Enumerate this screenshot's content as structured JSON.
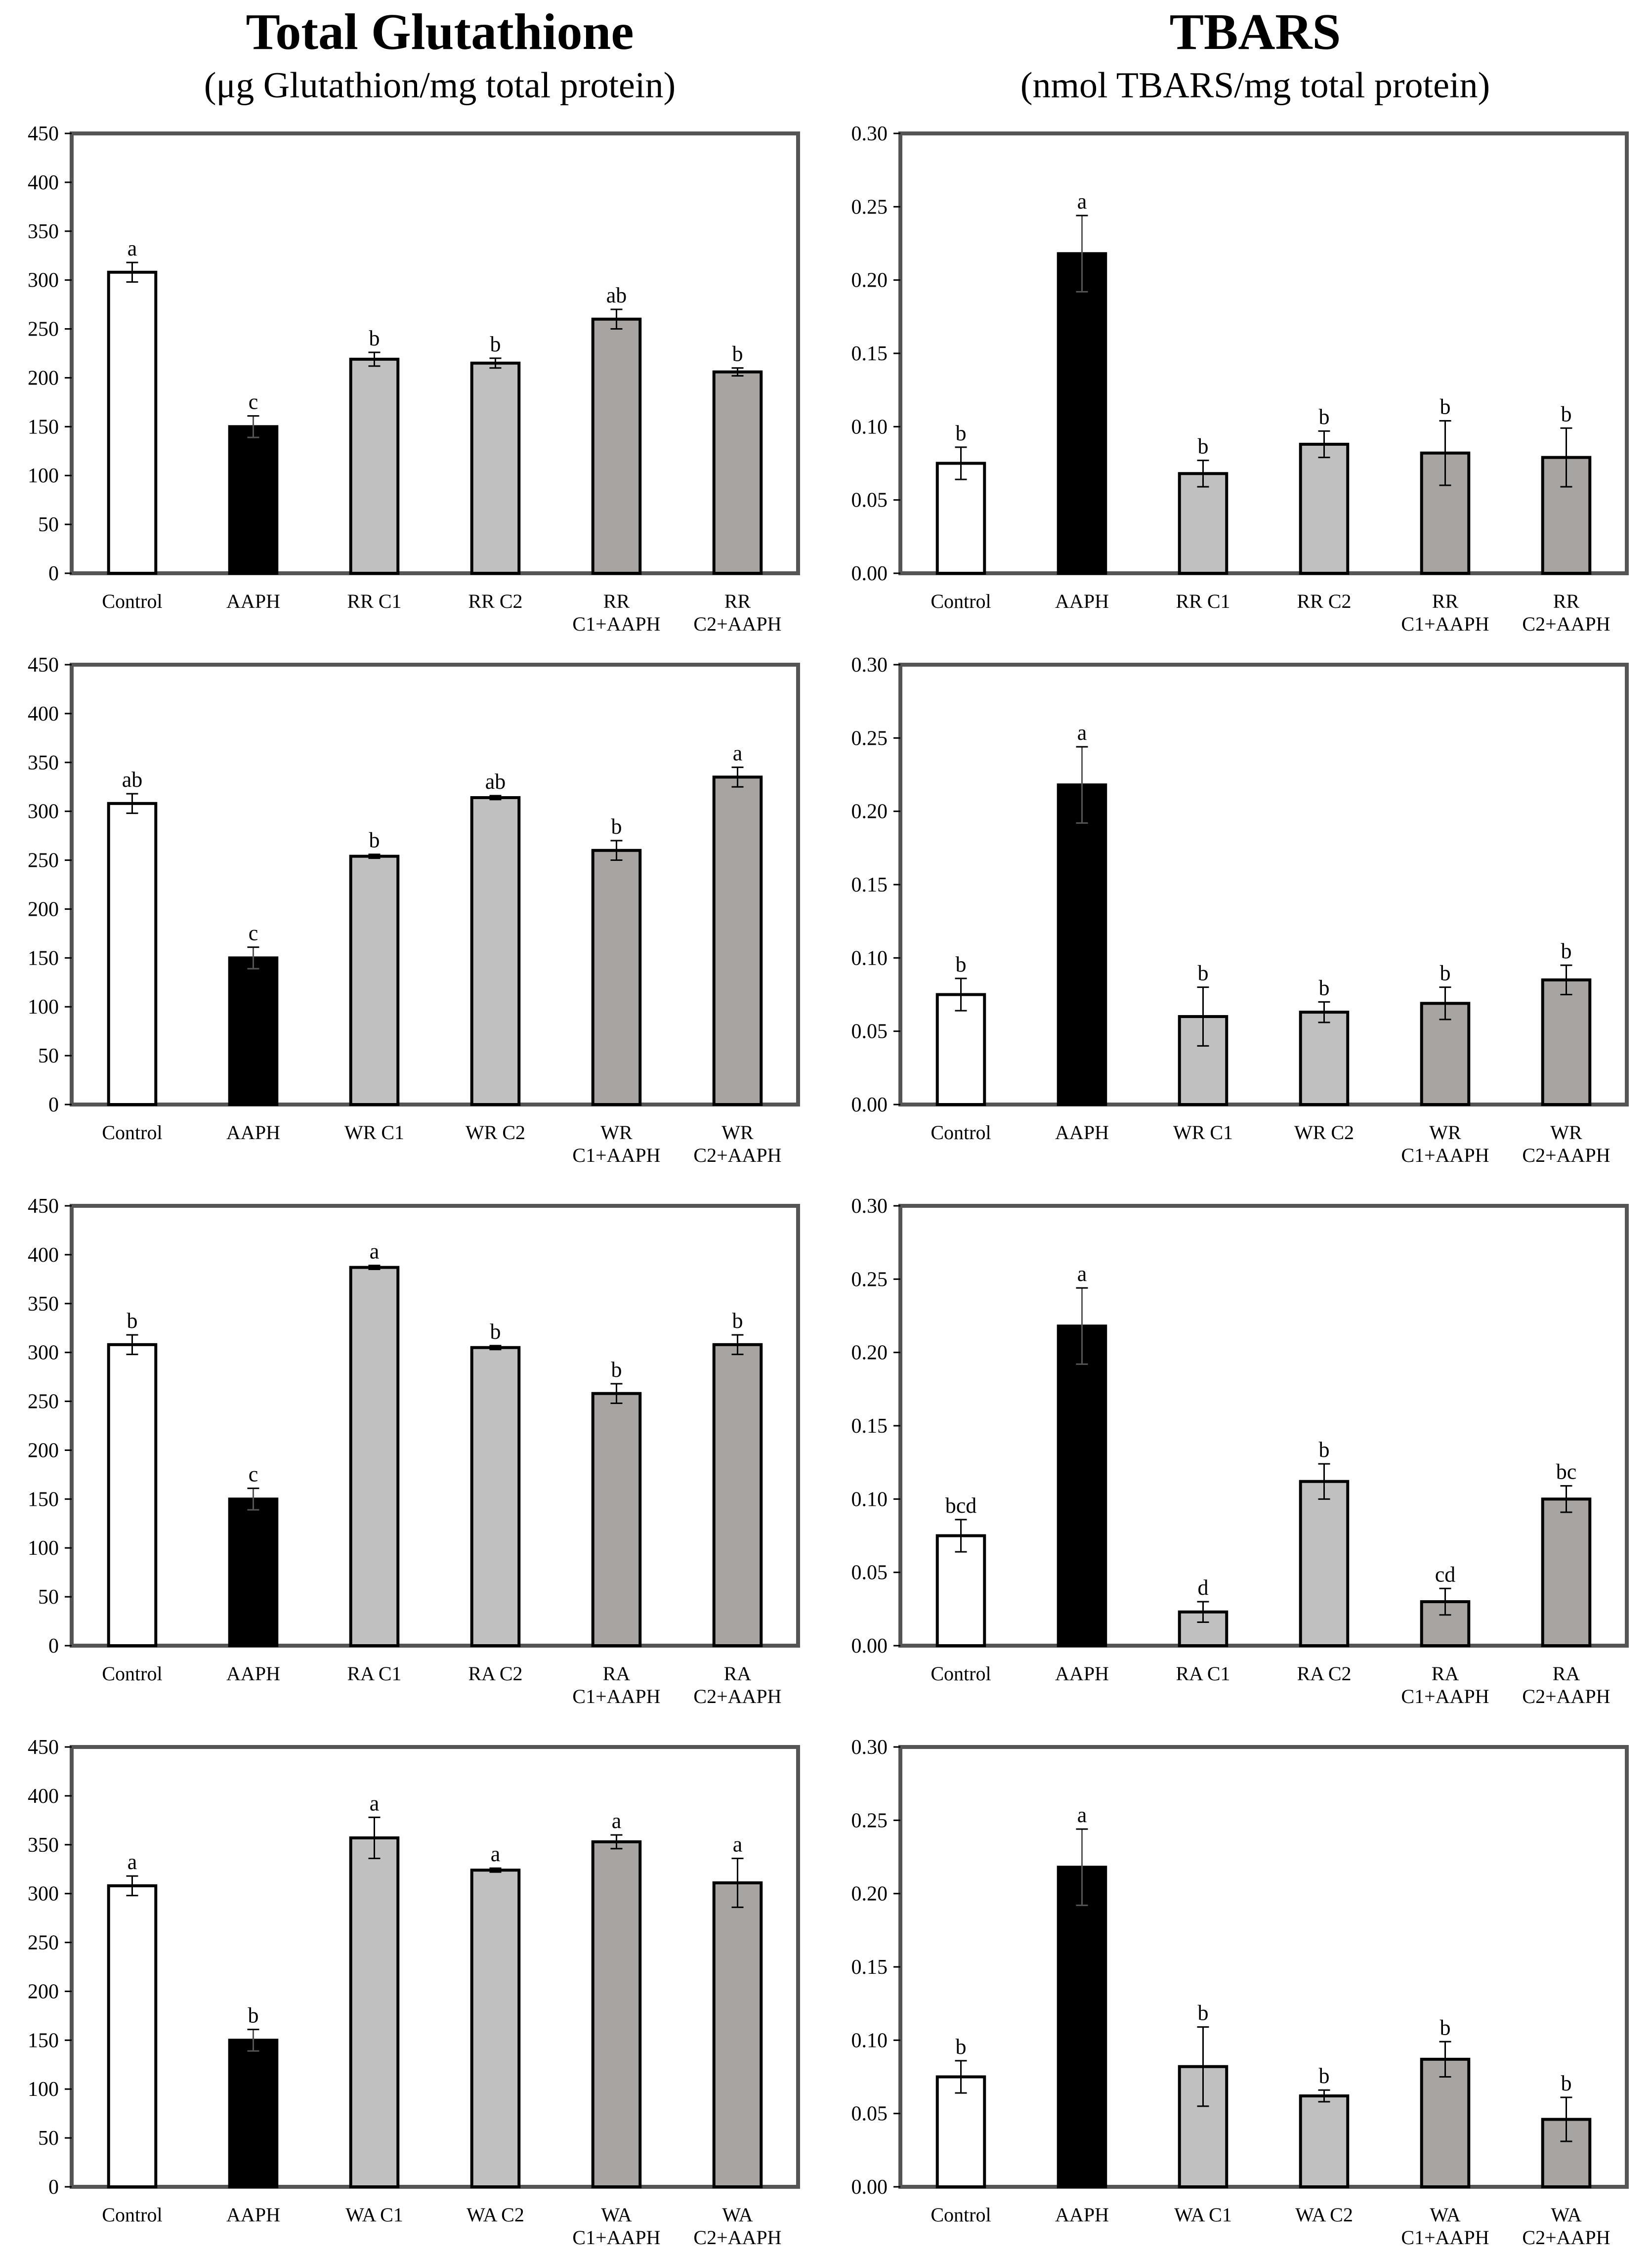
{
  "titles": {
    "left_main": "Total Glutathione",
    "left_sub": "(μg Glutathion/mg total protein)",
    "right_main": "TBARS",
    "right_sub": "(nmol TBARS/mg total protein)"
  },
  "colors": {
    "control": "#ffffff",
    "aaph": "#000000",
    "extract": "#c0c0c0",
    "extract_aaph": "#a8a4a2",
    "frame": "#555555"
  },
  "chart_data": [
    {
      "type": "bar",
      "column": "left",
      "row": 0,
      "title": "Total Glutathione",
      "ylabel": "μg Glutathion/mg total protein",
      "ylim": [
        0,
        450
      ],
      "yticks": [
        0,
        50,
        100,
        150,
        200,
        250,
        300,
        350,
        400,
        450
      ],
      "tick_decimals": 0,
      "categories": [
        [
          "Control"
        ],
        [
          "AAPH"
        ],
        [
          "RR C1"
        ],
        [
          "RR C2"
        ],
        [
          "RR",
          "C1+AAPH"
        ],
        [
          "RR",
          "C2+AAPH"
        ]
      ],
      "values": [
        308,
        150,
        219,
        215,
        260,
        206
      ],
      "errors": [
        10,
        11,
        7,
        5,
        10,
        4
      ],
      "letters": [
        "a",
        "c",
        "b",
        "b",
        "ab",
        "b"
      ]
    },
    {
      "type": "bar",
      "column": "left",
      "row": 1,
      "title": "Total Glutathione",
      "ylabel": "μg Glutathion/mg total protein",
      "ylim": [
        0,
        450
      ],
      "yticks": [
        0,
        50,
        100,
        150,
        200,
        250,
        300,
        350,
        400,
        450
      ],
      "tick_decimals": 0,
      "categories": [
        [
          "Control"
        ],
        [
          "AAPH"
        ],
        [
          "WR C1"
        ],
        [
          "WR C2"
        ],
        [
          "WR",
          "C1+AAPH"
        ],
        [
          "WR",
          "C2+AAPH"
        ]
      ],
      "values": [
        308,
        150,
        254,
        314,
        260,
        335
      ],
      "errors": [
        10,
        11,
        2,
        2,
        10,
        10
      ],
      "letters": [
        "ab",
        "c",
        "b",
        "ab",
        "b",
        "a"
      ]
    },
    {
      "type": "bar",
      "column": "left",
      "row": 2,
      "title": "Total Glutathione",
      "ylabel": "μg Glutathion/mg total protein",
      "ylim": [
        0,
        450
      ],
      "yticks": [
        0,
        50,
        100,
        150,
        200,
        250,
        300,
        350,
        400,
        450
      ],
      "tick_decimals": 0,
      "categories": [
        [
          "Control"
        ],
        [
          "AAPH"
        ],
        [
          "RA C1"
        ],
        [
          "RA C2"
        ],
        [
          "RA",
          "C1+AAPH"
        ],
        [
          "RA",
          "C2+AAPH"
        ]
      ],
      "values": [
        308,
        150,
        387,
        305,
        258,
        308
      ],
      "errors": [
        10,
        11,
        2,
        2,
        10,
        10
      ],
      "letters": [
        "b",
        "c",
        "a",
        "b",
        "b",
        "b"
      ]
    },
    {
      "type": "bar",
      "column": "left",
      "row": 3,
      "title": "Total Glutathione",
      "ylabel": "μg Glutathion/mg total protein",
      "ylim": [
        0,
        450
      ],
      "yticks": [
        0,
        50,
        100,
        150,
        200,
        250,
        300,
        350,
        400,
        450
      ],
      "tick_decimals": 0,
      "categories": [
        [
          "Control"
        ],
        [
          "AAPH"
        ],
        [
          "WA C1"
        ],
        [
          "WA C2"
        ],
        [
          "WA",
          "C1+AAPH"
        ],
        [
          "WA",
          "C2+AAPH"
        ]
      ],
      "values": [
        308,
        150,
        357,
        324,
        353,
        311
      ],
      "errors": [
        10,
        11,
        21,
        2,
        7,
        25
      ],
      "letters": [
        "a",
        "b",
        "a",
        "a",
        "a",
        "a"
      ]
    },
    {
      "type": "bar",
      "column": "right",
      "row": 0,
      "title": "TBARS",
      "ylabel": "nmol TBARS/mg total protein",
      "ylim": [
        0,
        0.3
      ],
      "yticks": [
        0,
        0.05,
        0.1,
        0.15,
        0.2,
        0.25,
        0.3
      ],
      "tick_decimals": 2,
      "categories": [
        [
          "Control"
        ],
        [
          "AAPH"
        ],
        [
          "RR C1"
        ],
        [
          "RR C2"
        ],
        [
          "RR",
          "C1+AAPH"
        ],
        [
          "RR",
          "C2+AAPH"
        ]
      ],
      "values": [
        0.075,
        0.218,
        0.068,
        0.088,
        0.082,
        0.079
      ],
      "errors": [
        0.011,
        0.026,
        0.009,
        0.009,
        0.022,
        0.02
      ],
      "letters": [
        "b",
        "a",
        "b",
        "b",
        "b",
        "b"
      ]
    },
    {
      "type": "bar",
      "column": "right",
      "row": 1,
      "title": "TBARS",
      "ylabel": "nmol TBARS/mg total protein",
      "ylim": [
        0,
        0.3
      ],
      "yticks": [
        0,
        0.05,
        0.1,
        0.15,
        0.2,
        0.25,
        0.3
      ],
      "tick_decimals": 2,
      "categories": [
        [
          "Control"
        ],
        [
          "AAPH"
        ],
        [
          "WR C1"
        ],
        [
          "WR C2"
        ],
        [
          "WR",
          "C1+AAPH"
        ],
        [
          "WR",
          "C2+AAPH"
        ]
      ],
      "values": [
        0.075,
        0.218,
        0.06,
        0.063,
        0.069,
        0.085
      ],
      "errors": [
        0.011,
        0.026,
        0.02,
        0.007,
        0.011,
        0.01
      ],
      "letters": [
        "b",
        "a",
        "b",
        "b",
        "b",
        "b"
      ]
    },
    {
      "type": "bar",
      "column": "right",
      "row": 2,
      "title": "TBARS",
      "ylabel": "nmol TBARS/mg total protein",
      "ylim": [
        0,
        0.3
      ],
      "yticks": [
        0,
        0.05,
        0.1,
        0.15,
        0.2,
        0.25,
        0.3
      ],
      "tick_decimals": 2,
      "categories": [
        [
          "Control"
        ],
        [
          "AAPH"
        ],
        [
          "RA C1"
        ],
        [
          "RA C2"
        ],
        [
          "RA",
          "C1+AAPH"
        ],
        [
          "RA",
          "C2+AAPH"
        ]
      ],
      "values": [
        0.075,
        0.218,
        0.023,
        0.112,
        0.03,
        0.1
      ],
      "errors": [
        0.011,
        0.026,
        0.007,
        0.012,
        0.009,
        0.009
      ],
      "letters": [
        "bcd",
        "a",
        "d",
        "b",
        "cd",
        "bc"
      ]
    },
    {
      "type": "bar",
      "column": "right",
      "row": 3,
      "title": "TBARS",
      "ylabel": "nmol TBARS/mg total protein",
      "ylim": [
        0,
        0.3
      ],
      "yticks": [
        0,
        0.05,
        0.1,
        0.15,
        0.2,
        0.25,
        0.3
      ],
      "tick_decimals": 2,
      "categories": [
        [
          "Control"
        ],
        [
          "AAPH"
        ],
        [
          "WA C1"
        ],
        [
          "WA C2"
        ],
        [
          "WA",
          "C1+AAPH"
        ],
        [
          "WA",
          "C2+AAPH"
        ]
      ],
      "values": [
        0.075,
        0.218,
        0.082,
        0.062,
        0.087,
        0.046
      ],
      "errors": [
        0.011,
        0.026,
        0.027,
        0.004,
        0.012,
        0.015
      ],
      "letters": [
        "b",
        "a",
        "b",
        "b",
        "b",
        "b"
      ]
    }
  ]
}
